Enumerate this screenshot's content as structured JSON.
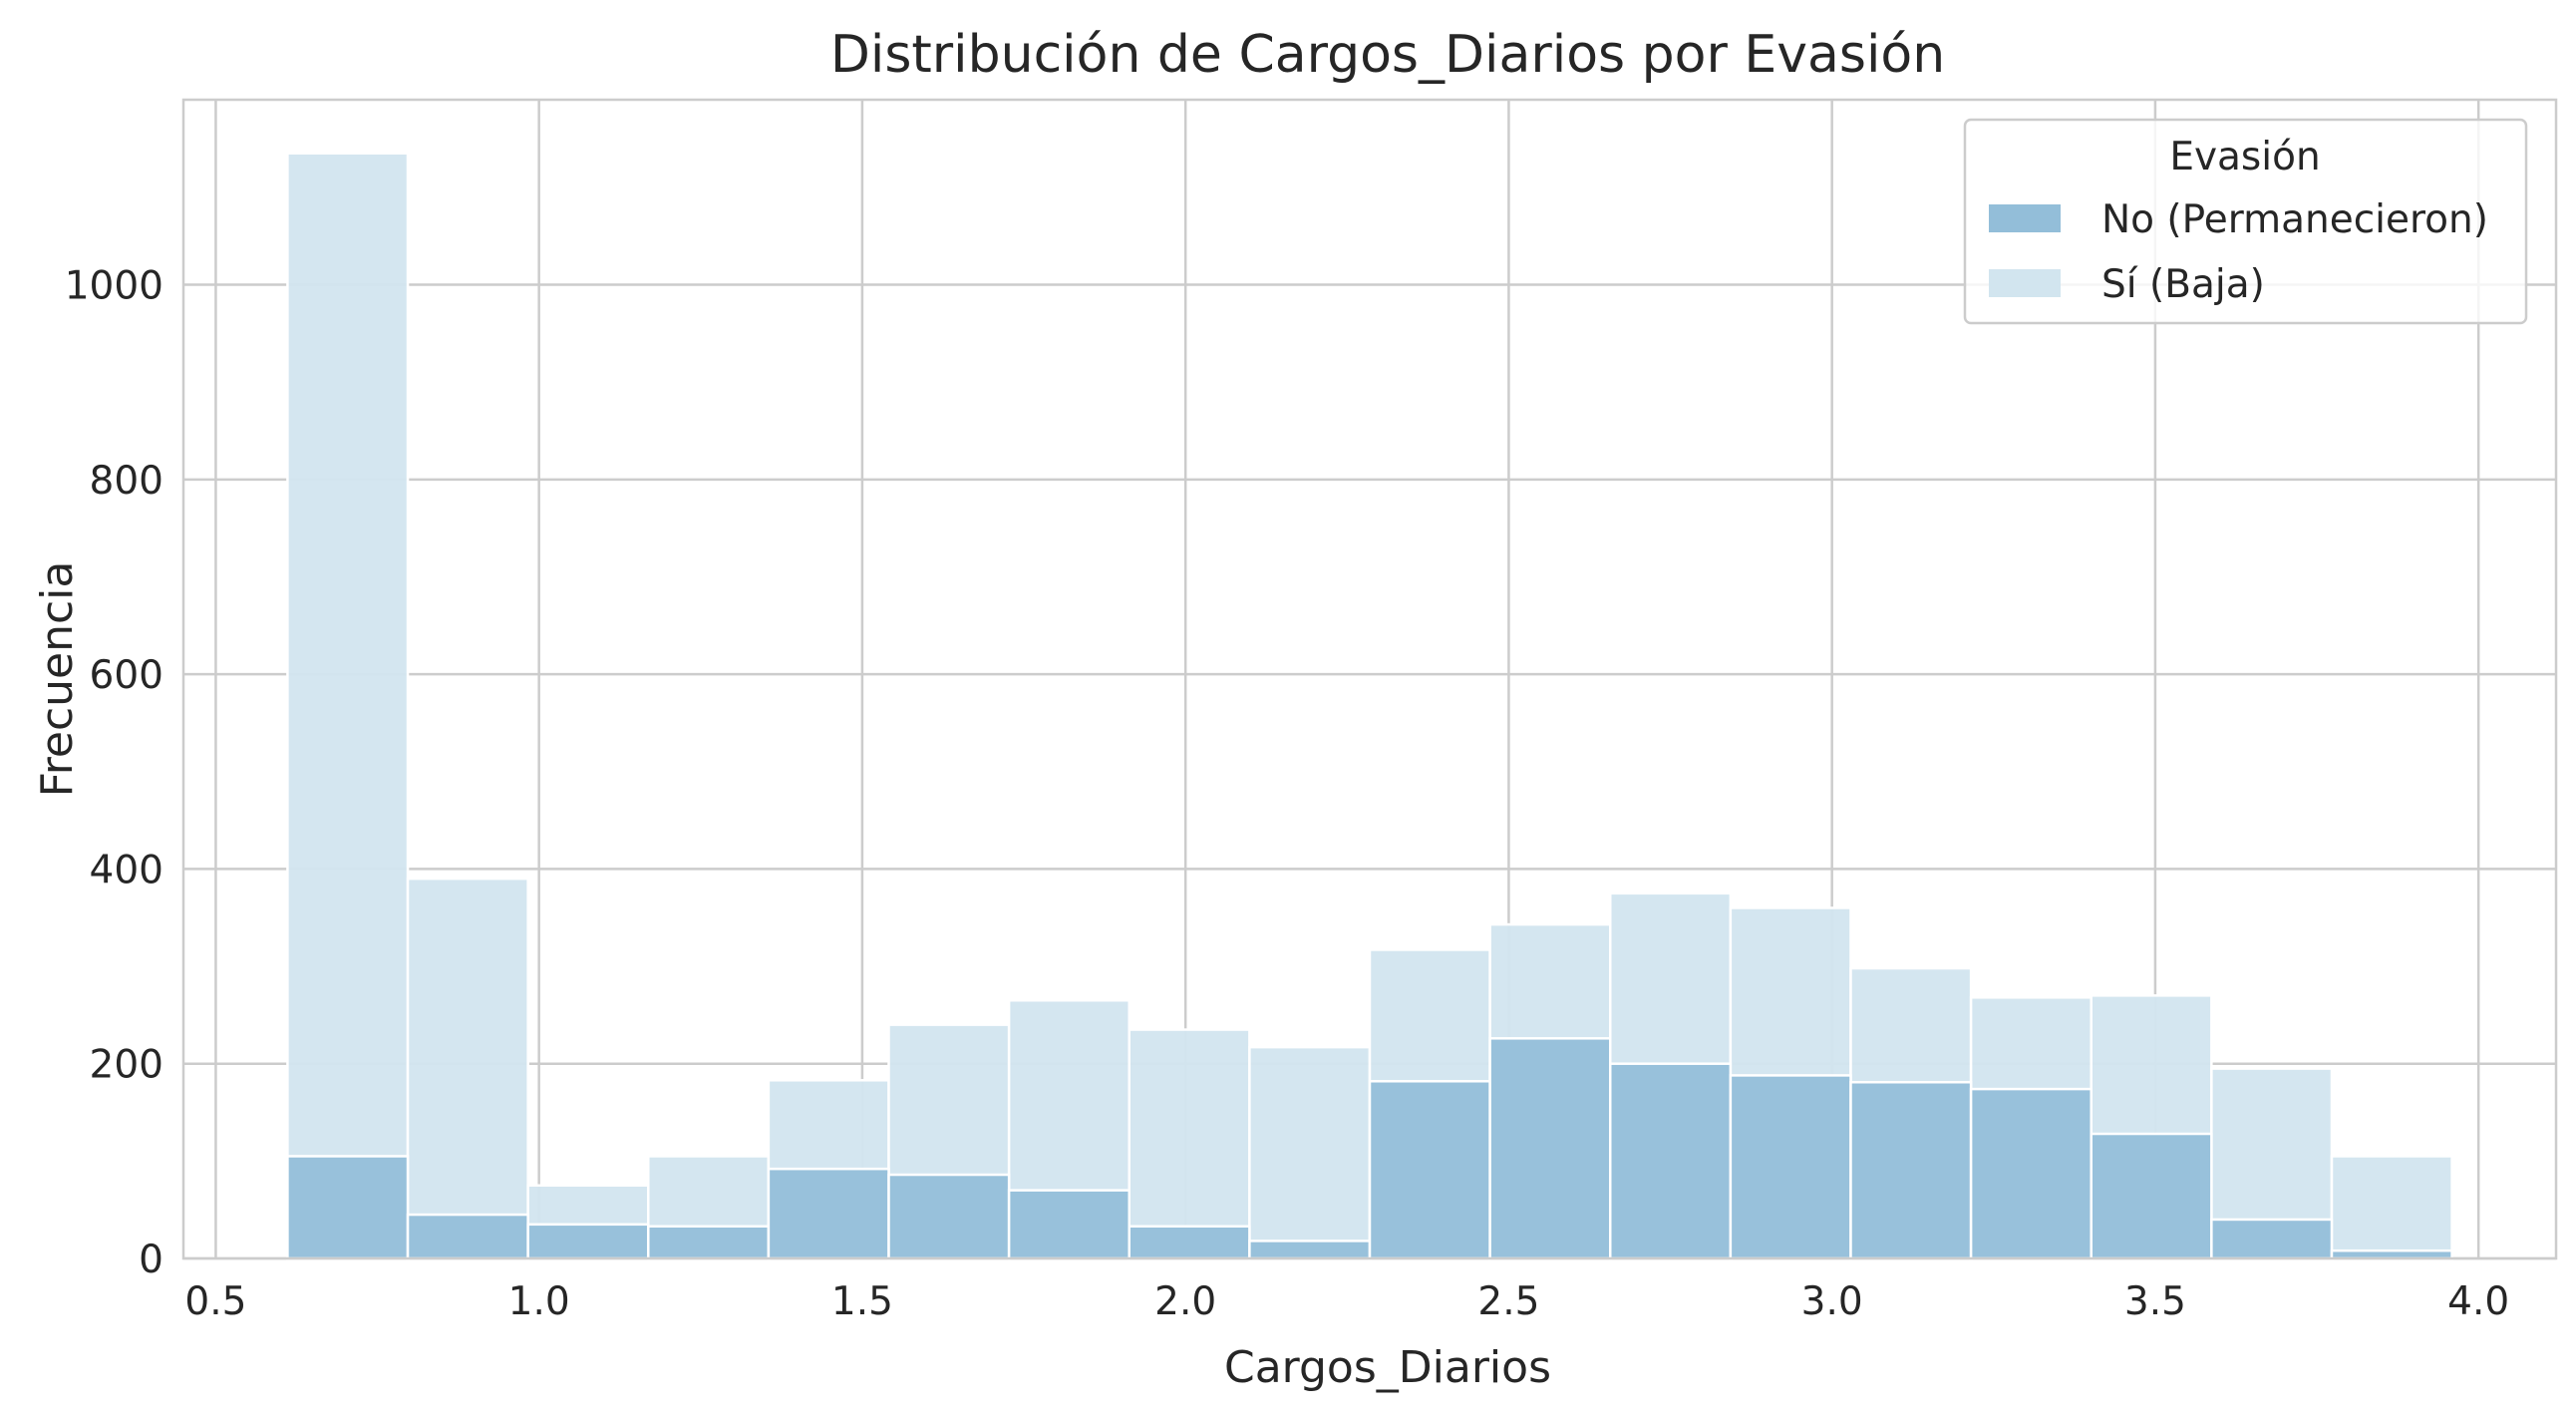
{
  "chart_data": {
    "type": "bar",
    "title": "Distribución de Cargos_Diarios por Evasión",
    "xlabel": "Cargos_Diarios",
    "ylabel": "Frecuencia",
    "xlim": [
      0.45,
      4.12
    ],
    "ylim": [
      0,
      1190
    ],
    "xticks": [
      0.5,
      1.0,
      1.5,
      2.0,
      2.5,
      3.0,
      3.5,
      4.0
    ],
    "xtick_labels": [
      "0.5",
      "1.0",
      "1.5",
      "2.0",
      "2.5",
      "3.0",
      "3.5",
      "4.0"
    ],
    "yticks": [
      0,
      200,
      400,
      600,
      800,
      1000
    ],
    "ytick_labels": [
      "0",
      "200",
      "400",
      "600",
      "800",
      "1000"
    ],
    "grid": true,
    "legend": {
      "title": "Evasión",
      "position": "top-right"
    },
    "bin_edges": [
      0.611,
      0.797,
      0.983,
      1.169,
      1.355,
      1.541,
      1.727,
      1.913,
      2.099,
      2.285,
      2.471,
      2.657,
      2.843,
      3.029,
      3.215,
      3.401,
      3.587,
      3.773,
      3.959
    ],
    "series": [
      {
        "name": "Sí (Baja)",
        "color": "#d2e5ef",
        "values": [
          1135,
          390,
          75,
          105,
          183,
          240,
          265,
          235,
          217,
          317,
          343,
          375,
          360,
          298,
          268,
          270,
          195,
          105
        ]
      },
      {
        "name": "No (Permanecieron)",
        "color": "#93bed9",
        "values": [
          105,
          45,
          35,
          33,
          92,
          86,
          70,
          33,
          18,
          182,
          226,
          200,
          188,
          181,
          174,
          128,
          40,
          8
        ]
      }
    ]
  }
}
